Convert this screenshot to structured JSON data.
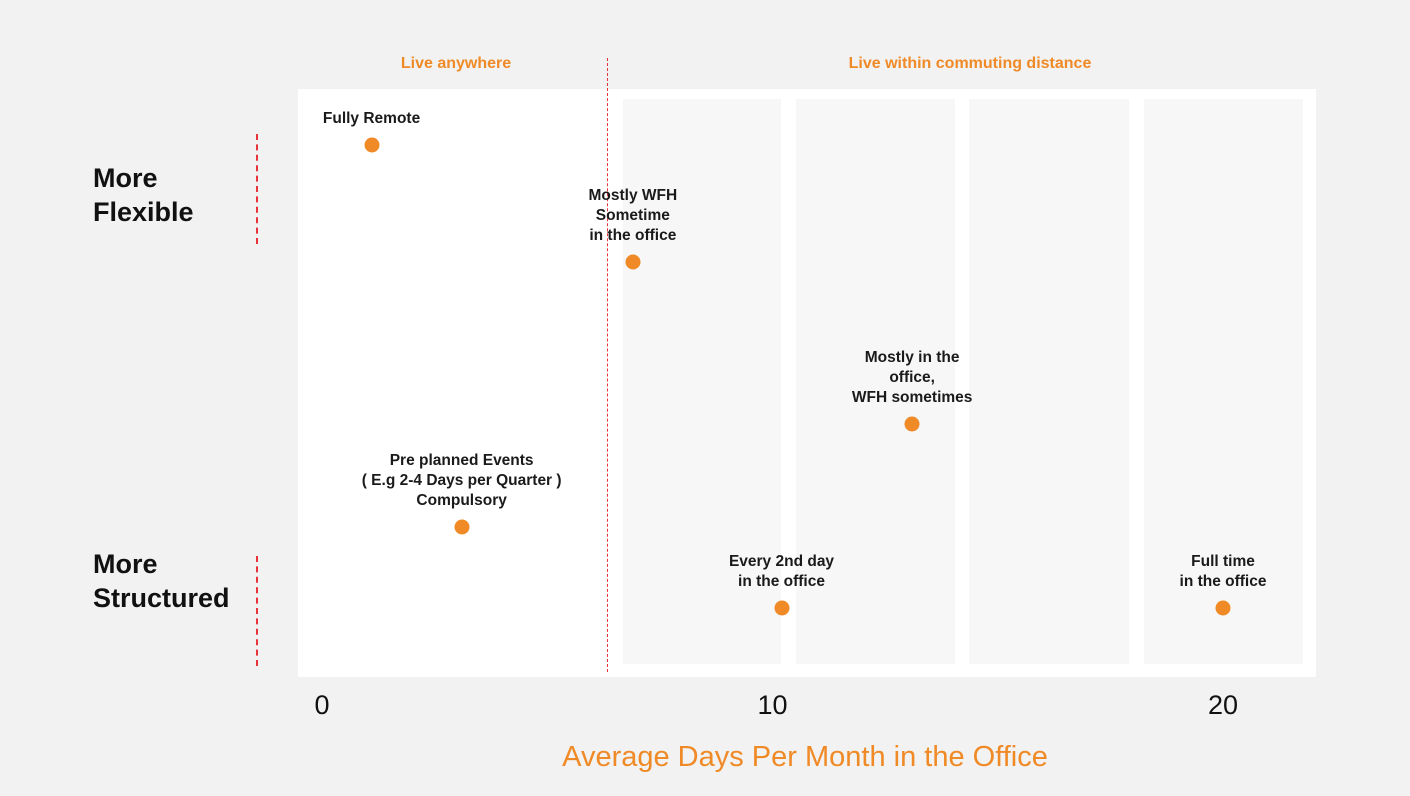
{
  "regions": {
    "left": "Live anywhere",
    "right": "Live within commuting distance"
  },
  "side_labels": {
    "flexible": [
      "More",
      "Flexible"
    ],
    "structured": [
      "More",
      "Structured"
    ]
  },
  "chart_data": {
    "type": "scatter",
    "xlabel": "Average Days Per Month in the Office",
    "xticks": [
      0,
      10,
      20
    ],
    "points": [
      {
        "label": "Fully Remote",
        "x": 1.1,
        "flex_rank": 1
      },
      {
        "label": "Mostly WFH\nSometime\nin the office",
        "x": 6.9,
        "flex_rank": 2
      },
      {
        "label": "Mostly in the\noffice,\nWFH sometimes",
        "x": 13.1,
        "flex_rank": 3
      },
      {
        "label": "Pre planned Events\n( E.g 2-4 Days per Quarter )\nCompulsory",
        "x": 3.1,
        "flex_rank": 4
      },
      {
        "label": "Every 2nd day\nin the office",
        "x": 10.2,
        "flex_rank": 5
      },
      {
        "label": "Full time\nin the office",
        "x": 20.0,
        "flex_rank": 5
      }
    ]
  }
}
